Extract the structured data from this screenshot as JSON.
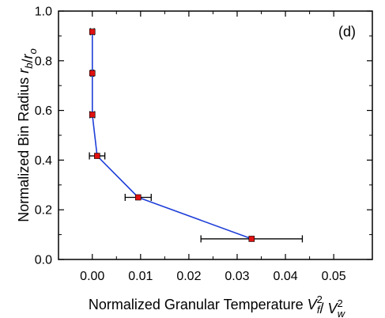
{
  "chart_data": {
    "type": "scatter",
    "panel_label": "(d)",
    "xlabel": {
      "parts": [
        {
          "text": "Normalized Granular Temperature ",
          "style": "normal"
        },
        {
          "text": "V",
          "style": "italic",
          "sup": "2",
          "sub": "f"
        },
        {
          "text": "/ ",
          "style": "normal"
        },
        {
          "text": "V",
          "style": "italic",
          "sup": "2",
          "sub": "w"
        }
      ]
    },
    "ylabel": {
      "parts": [
        {
          "text": "Normalized Bin Radius ",
          "style": "normal"
        },
        {
          "text": "r",
          "style": "italic",
          "sub": "b"
        },
        {
          "text": "/",
          "style": "normal"
        },
        {
          "text": "r",
          "style": "italic",
          "sub": "o"
        }
      ]
    },
    "xlim": [
      -0.007,
      0.058
    ],
    "ylim": [
      0.0,
      1.0
    ],
    "xticks": [
      "0.00",
      "0.01",
      "0.02",
      "0.03",
      "0.04",
      "0.05"
    ],
    "yticks": [
      "0.0",
      "0.2",
      "0.4",
      "0.6",
      "0.8",
      "1.0"
    ],
    "grid": false,
    "line_color": "#1f3fd8",
    "marker_color": "#e01010",
    "marker_edge": "#000000",
    "errorbar_color": "#000000",
    "series": [
      {
        "x": [
          0.0,
          0.0,
          0.0,
          0.001,
          0.0095,
          0.033
        ],
        "y": [
          0.917,
          0.75,
          0.583,
          0.417,
          0.25,
          0.083
        ],
        "xerr": [
          0.0004,
          0.0003,
          0.0005,
          0.0016,
          0.0027,
          0.0105
        ]
      }
    ]
  }
}
